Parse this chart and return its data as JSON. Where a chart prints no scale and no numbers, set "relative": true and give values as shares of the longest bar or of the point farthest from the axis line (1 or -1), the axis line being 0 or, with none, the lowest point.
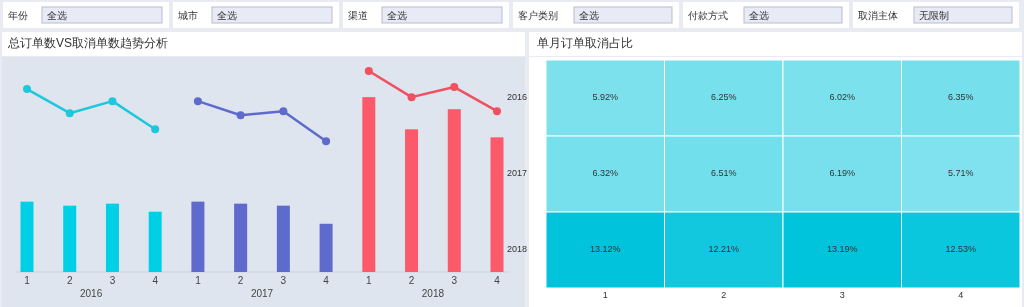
{
  "chart_data": [
    {
      "type": "other",
      "annotations": [
        "年份",
        "全选",
        "城市",
        "全选",
        "渠道",
        "全选",
        "客户类别",
        "全选",
        "付款方式",
        "全选",
        "取消主体",
        "无限制"
      ]
    },
    {
      "type": "bar",
      "title": "总订单数VS取消单数趋势分析",
      "relative": true,
      "marker": "circle",
      "categories": [
        "1",
        "2",
        "3",
        "4",
        "1",
        "2",
        "3",
        "4",
        "1",
        "2",
        "3",
        "4"
      ],
      "annotations": [
        "2016",
        "2017",
        "2018"
      ],
      "series": [
        {
          "type": "bar",
          "colors": [
            "#00d0e6",
            "#00d0e6",
            "#00d0e6",
            "#00d0e6",
            "#5f6acd",
            "#5f6acd",
            "#5f6acd",
            "#5f6acd",
            "#fc5a6b",
            "#fc5a6b",
            "#fc5a6b",
            "#fc5a6b"
          ],
          "values": [
            0.35,
            0.33,
            0.34,
            0.3,
            0.35,
            0.34,
            0.33,
            0.24,
            0.87,
            0.71,
            0.81,
            0.67
          ]
        },
        {
          "type": "line",
          "color": "#1ec8dc",
          "values": [
            0.91,
            0.79,
            0.85,
            0.71,
            null,
            null,
            null,
            null,
            null,
            null,
            null,
            null
          ]
        },
        {
          "type": "line",
          "color": "#5f6acd",
          "values": [
            null,
            null,
            null,
            null,
            0.85,
            0.78,
            0.8,
            0.65,
            null,
            null,
            null,
            null
          ]
        },
        {
          "type": "line",
          "color": "#f0505f",
          "values": [
            null,
            null,
            null,
            null,
            null,
            null,
            null,
            null,
            1,
            0.87,
            0.92,
            0.8
          ]
        }
      ]
    },
    {
      "type": "heatmap",
      "title": "单月订单取消占比",
      "categories": [
        "1",
        "2",
        "3",
        "4"
      ],
      "y_categories": [
        "2016",
        "2017",
        "2018"
      ],
      "cells": [
        [
          5.92,
          6.25,
          6.02,
          6.35
        ],
        [
          6.32,
          6.51,
          6.19,
          5.71
        ],
        [
          13.12,
          12.21,
          13.19,
          12.53
        ]
      ],
      "cell_labels": [
        [
          "5.92%",
          "6.25%",
          "6.02%",
          "6.35%"
        ],
        [
          "6.32%",
          "6.51%",
          "6.19%",
          "5.71%"
        ],
        [
          "13.12%",
          "12.21%",
          "13.19%",
          "12.53%"
        ]
      ]
    }
  ]
}
